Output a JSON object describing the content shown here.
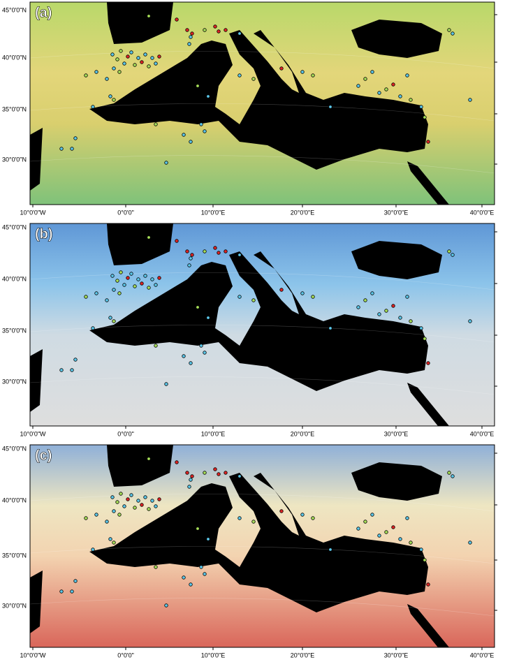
{
  "panels": [
    {
      "label": "(a)",
      "lat_labels": [
        "45°0'0\"N",
        "40°0'0\"N",
        "35°0'0\"N",
        "30°0'0\"N"
      ],
      "lon_labels": [
        "10°0'0\"W",
        "0°0'0\"",
        "10°0'0\"E",
        "20°0'0\"E",
        "30°0'0\"E",
        "40°0'0\"E"
      ]
    },
    {
      "label": "(b)",
      "lat_labels": [
        "45°0'0\"N",
        "40°0'0\"N",
        "35°0'0\"N",
        "30°0'0\"N"
      ],
      "lon_labels": [
        "10°0'0\"W",
        "0°0'0\"",
        "10°0'0\"E",
        "20°0'0\"E",
        "30°0'0\"E",
        "40°0'0\"E"
      ]
    },
    {
      "label": "(c)",
      "lat_labels": [
        "45°0'0\"N",
        "40°0'0\"N",
        "35°0'0\"N",
        "30°0'0\"N"
      ],
      "lon_labels": [
        "10°0'0\"W",
        "0°0'0\"",
        "10°0'0\"E",
        "20°0'0\"E",
        "30°0'0\"E",
        "40°0'0\"E"
      ]
    }
  ]
}
